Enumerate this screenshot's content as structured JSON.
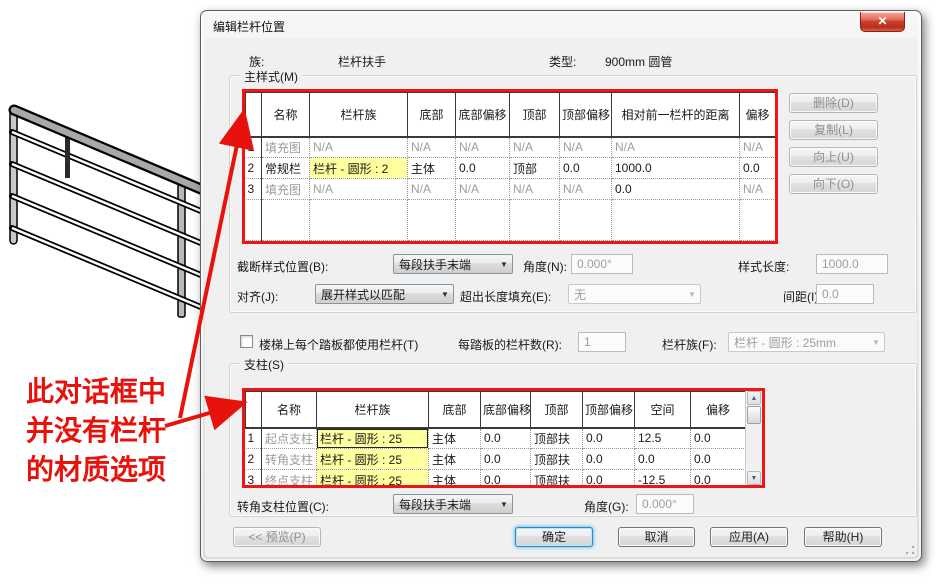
{
  "annotation": {
    "line1": "此对话框中",
    "line2": "并没有栏杆",
    "line3": "的材质选项"
  },
  "icons": {
    "close": "✕",
    "dropdown": "▼",
    "scroll_up": "▲",
    "scroll_down": "▼"
  },
  "colors": {
    "annotation_red": "#e8120c",
    "highlight_yellow": "#ffffa0",
    "close_red": "#cc3f2c"
  },
  "dialog": {
    "title": "编辑栏杆位置",
    "family_label": "族:",
    "family_value": "栏杆扶手",
    "type_label": "类型:",
    "type_value": "900mm 圆管",
    "main": {
      "group_label": "主样式(M)",
      "table": {
        "headers": [
          "",
          "名称",
          "栏杆族",
          "底部",
          "底部偏移",
          "顶部",
          "顶部偏移",
          "相对前一栏杆的距离",
          "偏移"
        ],
        "rows": [
          {
            "num": "1",
            "name_muted": true,
            "highlight_col": null,
            "cells": [
              "填充图",
              "N/A",
              "N/A",
              "N/A",
              "N/A",
              "N/A",
              "N/A",
              "N/A"
            ]
          },
          {
            "num": "2",
            "name_muted": false,
            "highlight_col": 1,
            "cells": [
              "常规栏",
              "栏杆 - 圆形 : 2",
              "主体",
              "0.0",
              "顶部",
              "0.0",
              "1000.0",
              "0.0"
            ]
          },
          {
            "num": "3",
            "name_muted": true,
            "highlight_col": null,
            "cells": [
              "填充图",
              "N/A",
              "N/A",
              "N/A",
              "N/A",
              "N/A",
              "0.0",
              "N/A"
            ]
          }
        ]
      },
      "buttons": {
        "delete": "删除(D)",
        "duplicate": "复制(L)",
        "up": "向上(U)",
        "down": "向下(O)"
      },
      "break_label": "截断样式位置(B):",
      "break_value": "每段扶手末端",
      "angle_label": "角度(N):",
      "angle_value": "0.000°",
      "length_label": "样式长度:",
      "length_value": "1000.0",
      "justify_label": "对齐(J):",
      "justify_value": "展开样式以匹配",
      "excess_label": "超出长度填充(E):",
      "excess_value": "无",
      "spacing_label": "间距(I):",
      "spacing_value": "0.0"
    },
    "tread": {
      "checkbox_label": "楼梯上每个踏板都使用栏杆(T)",
      "count_label": "每踏板的栏杆数(R):",
      "count_value": "1",
      "family_label": "栏杆族(F):",
      "family_value": "栏杆 - 圆形 : 25mm"
    },
    "posts": {
      "group_label": "支柱(S)",
      "table": {
        "headers": [
          "",
          "名称",
          "栏杆族",
          "底部",
          "底部偏移",
          "顶部",
          "顶部偏移",
          "空间",
          "偏移"
        ],
        "rows": [
          {
            "num": "1",
            "name_muted": true,
            "highlight_col": 1,
            "focus": true,
            "cells": [
              "起点支柱",
              "栏杆 - 圆形 : 25",
              "主体",
              "0.0",
              "顶部扶",
              "0.0",
              "12.5",
              "0.0"
            ]
          },
          {
            "num": "2",
            "name_muted": true,
            "highlight_col": 1,
            "cells": [
              "转角支柱",
              "栏杆 - 圆形 : 25",
              "主体",
              "0.0",
              "顶部扶",
              "0.0",
              "0.0",
              "0.0"
            ]
          },
          {
            "num": "3",
            "name_muted": true,
            "highlight_col": 1,
            "cells": [
              "终点支柱",
              "栏杆 - 圆形 : 25",
              "主体",
              "0.0",
              "顶部扶",
              "0.0",
              "-12.5",
              "0.0"
            ]
          }
        ]
      },
      "corner_label": "转角支柱位置(C):",
      "corner_value": "每段扶手末端",
      "angle_label": "角度(G):",
      "angle_value": "0.000°"
    },
    "footer": {
      "preview": "<< 预览(P)",
      "ok": "确定",
      "cancel": "取消",
      "apply": "应用(A)",
      "help": "帮助(H)"
    }
  }
}
